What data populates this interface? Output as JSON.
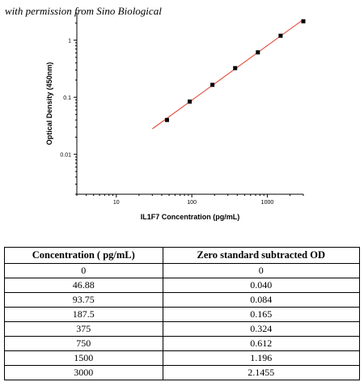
{
  "watermark": "with permission from Sino Biological",
  "chart_data": {
    "type": "scatter",
    "xscale": "log",
    "yscale": "log",
    "xlim": [
      3,
      3000
    ],
    "ylim": [
      0.002,
      3
    ],
    "xticks": [
      10,
      100,
      1000
    ],
    "xtick_labels": [
      "10",
      "100",
      "1000"
    ],
    "yticks": [
      0.01,
      0.1,
      1
    ],
    "ytick_labels": [
      "0.01",
      "0.1",
      "1"
    ],
    "xlabel": "IL1F7 Concentration (pg/mL)",
    "ylabel": "Optical Density (450nm)",
    "grid": false,
    "marker_color": "#000000",
    "fit_color": "#e03a2a",
    "points": [
      {
        "x": 46.88,
        "y": 0.04
      },
      {
        "x": 93.75,
        "y": 0.084
      },
      {
        "x": 187.5,
        "y": 0.165
      },
      {
        "x": 375,
        "y": 0.324
      },
      {
        "x": 750,
        "y": 0.612
      },
      {
        "x": 1500,
        "y": 1.196
      },
      {
        "x": 3000,
        "y": 2.1455
      }
    ],
    "fit_line": [
      {
        "x": 30,
        "y": 0.028
      },
      {
        "x": 3000,
        "y": 2.3
      }
    ]
  },
  "table": {
    "headers": [
      "Concentration ( pg/mL)",
      "Zero standard subtracted OD"
    ],
    "rows": [
      [
        "0",
        "0"
      ],
      [
        "46.88",
        "0.040"
      ],
      [
        "93.75",
        "0.084"
      ],
      [
        "187.5",
        "0.165"
      ],
      [
        "375",
        "0.324"
      ],
      [
        "750",
        "0.612"
      ],
      [
        "1500",
        "1.196"
      ],
      [
        "3000",
        "2.1455"
      ]
    ]
  }
}
